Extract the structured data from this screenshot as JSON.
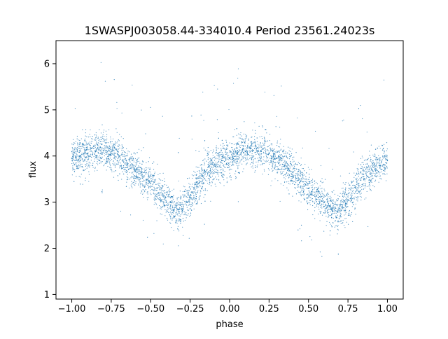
{
  "chart_data": {
    "type": "scatter",
    "title": "1SWASPJ003058.44-334010.4 Period 23561.24023s",
    "xlabel": "phase",
    "ylabel": "flux",
    "xlim": [
      -1.1,
      1.1
    ],
    "ylim": [
      0.9,
      6.5
    ],
    "xticks": [
      -1.0,
      -0.75,
      -0.5,
      -0.25,
      0.0,
      0.25,
      0.5,
      0.75,
      1.0
    ],
    "xtick_labels": [
      "−1.00",
      "−0.75",
      "−0.50",
      "−0.25",
      "0.00",
      "0.25",
      "0.50",
      "0.75",
      "1.00"
    ],
    "yticks": [
      1,
      2,
      3,
      4,
      5,
      6
    ],
    "ytick_labels": [
      "1",
      "2",
      "3",
      "4",
      "5",
      "6"
    ],
    "grid": false,
    "legend": "none",
    "point_color": "#1f77b4",
    "series": [
      {
        "x": [
          -1.0,
          -0.95,
          -0.9,
          -0.85,
          -0.8,
          -0.75,
          -0.7,
          -0.65,
          -0.6,
          -0.55,
          -0.5,
          -0.45,
          -0.4,
          -0.35,
          -0.32,
          -0.3,
          -0.25,
          -0.2,
          -0.15,
          -0.1,
          -0.05,
          0.0,
          0.05,
          0.1,
          0.15,
          0.2,
          0.25,
          0.3,
          0.35,
          0.4,
          0.45,
          0.5,
          0.55,
          0.6,
          0.65,
          0.68,
          0.7,
          0.75,
          0.8,
          0.85,
          0.9,
          0.95,
          1.0
        ],
        "y": [
          3.95,
          4.0,
          4.05,
          4.1,
          4.12,
          4.1,
          4.0,
          3.85,
          3.7,
          3.55,
          3.4,
          3.2,
          3.0,
          2.85,
          2.8,
          2.85,
          3.1,
          3.4,
          3.65,
          3.8,
          3.9,
          3.95,
          4.05,
          4.1,
          4.12,
          4.1,
          4.05,
          3.95,
          3.8,
          3.65,
          3.45,
          3.3,
          3.15,
          3.0,
          2.85,
          2.8,
          2.85,
          3.05,
          3.3,
          3.55,
          3.7,
          3.8,
          3.9
        ]
      }
    ]
  }
}
